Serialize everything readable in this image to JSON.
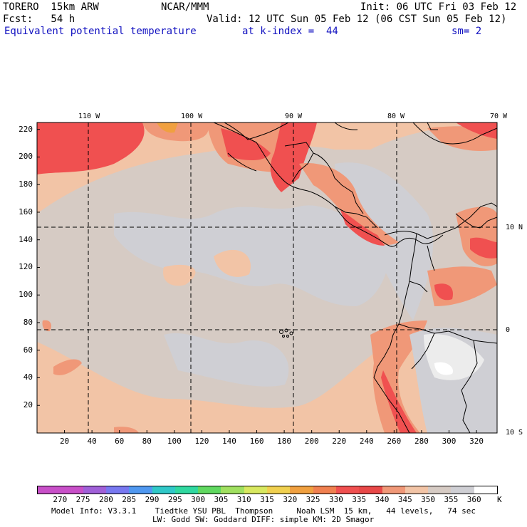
{
  "header": {
    "model": "TORERO  15km ARW",
    "center": "NCAR/MMM",
    "init": "Init: 06 UTC Fri 03 Feb 12",
    "fcst": "Fcst:   54 h",
    "valid": "Valid: 12 UTC Sun 05 Feb 12 (06 CST Sun 05 Feb 12)",
    "field": "Equivalent potential temperature",
    "level": "at k-index =  44",
    "smooth": "sm= 2"
  },
  "map": {
    "lon_labels": [
      "110 W",
      "100 W",
      "90 W",
      "80 W",
      "70 W"
    ],
    "lat_labels": [
      "10 N",
      "0",
      "10 S"
    ],
    "x_grid_labels": [
      "20",
      "40",
      "60",
      "80",
      "100",
      "120",
      "140",
      "160",
      "180",
      "200",
      "220",
      "240",
      "260",
      "280",
      "300",
      "320"
    ],
    "y_grid_labels": [
      "220",
      "200",
      "180",
      "160",
      "140",
      "120",
      "100",
      "80",
      "60",
      "40",
      "20"
    ]
  },
  "colorbar": {
    "labels": [
      "270",
      "275",
      "280",
      "285",
      "290",
      "295",
      "300",
      "305",
      "310",
      "315",
      "320",
      "325",
      "330",
      "335",
      "340",
      "345",
      "350",
      "355",
      "360"
    ],
    "unit": "K",
    "colors": [
      "#c850c8",
      "#a060d8",
      "#7878f0",
      "#5098f0",
      "#30c8c8",
      "#30d8a0",
      "#60d860",
      "#a0e060",
      "#d8e860",
      "#f0d050",
      "#f0a040",
      "#f08050",
      "#f05050",
      "#e84848",
      "#f09878",
      "#f2c4a6",
      "#d6cbc4",
      "#cfcfd4",
      "#ffffff"
    ]
  },
  "footer": {
    "line1": "Model Info: V3.3.1    Tiedtke YSU PBL  Thompson     Noah LSM  15 km,   44 levels,   74 sec",
    "line2": "LW: Godd SW: Goddard DIFF: simple KM: 2D Smagor"
  }
}
